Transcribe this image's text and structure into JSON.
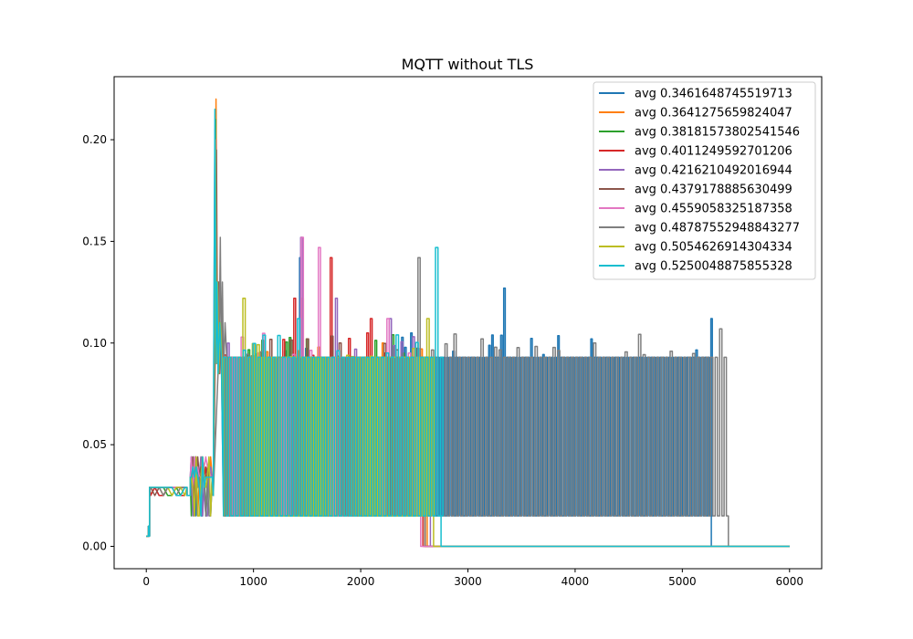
{
  "chart_data": {
    "type": "line",
    "title": "MQTT without TLS",
    "xlabel": "",
    "ylabel": "",
    "xlim": [
      -300,
      6300
    ],
    "ylim": [
      -0.011,
      0.231
    ],
    "xticks": [
      0,
      1000,
      2000,
      3000,
      4000,
      5000,
      6000
    ],
    "xtick_labels": [
      "0",
      "1000",
      "2000",
      "3000",
      "4000",
      "5000",
      "6000"
    ],
    "yticks": [
      0.0,
      0.05,
      0.1,
      0.15,
      0.2
    ],
    "ytick_labels": [
      "0.00",
      "0.05",
      "0.10",
      "0.15",
      "0.20"
    ],
    "grid": false,
    "legend_location": "upper right",
    "series": [
      {
        "name": "avg 0.3461648745519713",
        "color": "#1f77b4",
        "end": 5270,
        "tail_end": 6000,
        "peak": [
          650,
          0.215
        ],
        "spikes": [
          [
            1450,
            0.142
          ],
          [
            3350,
            0.127
          ],
          [
            4150,
            0.102
          ],
          [
            5270,
            0.112
          ]
        ]
      },
      {
        "name": "avg 0.3641275659824047",
        "color": "#ff7f0e",
        "end": 2620,
        "tail_end": 6000,
        "peak": [
          650,
          0.22
        ],
        "spikes": [
          [
            700,
            0.142
          ],
          [
            1450,
            0.122
          ],
          [
            2200,
            0.1
          ]
        ]
      },
      {
        "name": "avg 0.38181573802541546",
        "color": "#2ca02c",
        "end": 2600,
        "tail_end": 6000,
        "peak": [
          645,
          0.21
        ],
        "spikes": [
          [
            1500,
            0.102
          ],
          [
            2400,
            0.095
          ]
        ]
      },
      {
        "name": "avg 0.4011249592701206",
        "color": "#d62728",
        "end": 2580,
        "tail_end": 6000,
        "peak": [
          650,
          0.2
        ],
        "spikes": [
          [
            1400,
            0.122
          ],
          [
            1720,
            0.142
          ],
          [
            2120,
            0.112
          ]
        ]
      },
      {
        "name": "avg 0.4216210492016944",
        "color": "#9467bd",
        "end": 2650,
        "tail_end": 6000,
        "peak": [
          640,
          0.205
        ],
        "spikes": [
          [
            1460,
            0.152
          ],
          [
            1780,
            0.122
          ],
          [
            2300,
            0.112
          ]
        ]
      },
      {
        "name": "avg 0.4379178885630499",
        "color": "#8c564b",
        "end": 2600,
        "tail_end": 6000,
        "peak": [
          655,
          0.195
        ],
        "spikes": [
          [
            1500,
            0.102
          ],
          [
            1800,
            0.1
          ]
        ]
      },
      {
        "name": "avg 0.4559058325187358",
        "color": "#e377c2",
        "end": 2560,
        "tail_end": 6000,
        "peak": [
          645,
          0.2
        ],
        "spikes": [
          [
            1450,
            0.152
          ],
          [
            1640,
            0.147
          ],
          [
            2280,
            0.112
          ]
        ]
      },
      {
        "name": "avg 0.48787552948843277",
        "color": "#7f7f7f",
        "end": 5430,
        "tail_end": 6000,
        "peak": [
          690,
          0.152
        ],
        "spikes": [
          [
            2550,
            0.142
          ],
          [
            4200,
            0.1
          ],
          [
            5380,
            0.107
          ]
        ]
      },
      {
        "name": "avg 0.5054626914304334",
        "color": "#bcbd22",
        "end": 2680,
        "tail_end": 6000,
        "peak": [
          645,
          0.2
        ],
        "spikes": [
          [
            920,
            0.122
          ],
          [
            2650,
            0.112
          ]
        ]
      },
      {
        "name": "avg 0.5250048875855328",
        "color": "#17becf",
        "end": 2750,
        "tail_end": 6000,
        "peak": [
          640,
          0.215
        ],
        "spikes": [
          [
            1420,
            0.112
          ],
          [
            2730,
            0.147
          ]
        ]
      }
    ]
  }
}
